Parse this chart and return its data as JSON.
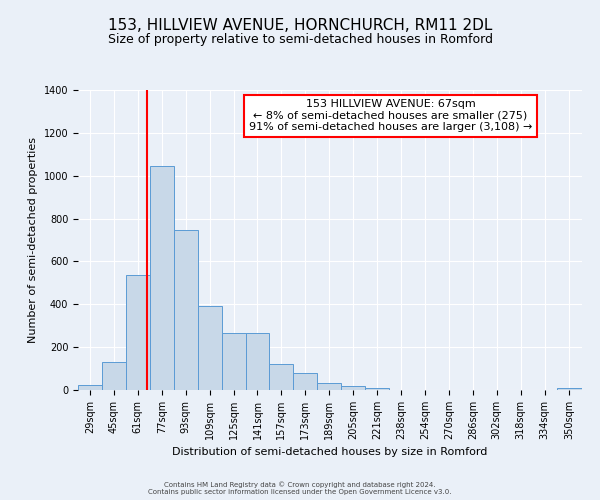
{
  "title": "153, HILLVIEW AVENUE, HORNCHURCH, RM11 2DL",
  "subtitle": "Size of property relative to semi-detached houses in Romford",
  "xlabel": "Distribution of semi-detached houses by size in Romford",
  "ylabel": "Number of semi-detached properties",
  "footer_line1": "Contains HM Land Registry data © Crown copyright and database right 2024.",
  "footer_line2": "Contains public sector information licensed under the Open Government Licence v3.0.",
  "annotation_title": "153 HILLVIEW AVENUE: 67sqm",
  "annotation_line1": "← 8% of semi-detached houses are smaller (275)",
  "annotation_line2": "91% of semi-detached houses are larger (3,108) →",
  "property_line": 67,
  "bar_color": "#c8d8e8",
  "bar_edge_color": "#5b9bd5",
  "vline_color": "red",
  "categories": [
    "29sqm",
    "45sqm",
    "61sqm",
    "77sqm",
    "93sqm",
    "109sqm",
    "125sqm",
    "141sqm",
    "157sqm",
    "173sqm",
    "189sqm",
    "205sqm",
    "221sqm",
    "238sqm",
    "254sqm",
    "270sqm",
    "286sqm",
    "302sqm",
    "318sqm",
    "334sqm",
    "350sqm"
  ],
  "bin_edges": [
    21,
    37,
    53,
    69,
    85,
    101,
    117,
    133,
    149,
    165,
    181,
    197,
    213,
    229,
    245,
    261,
    277,
    293,
    309,
    325,
    341,
    358
  ],
  "values": [
    25,
    133,
    537,
    1044,
    749,
    390,
    265,
    265,
    120,
    80,
    35,
    20,
    10,
    0,
    0,
    0,
    0,
    0,
    0,
    0,
    10
  ],
  "ylim": [
    0,
    1400
  ],
  "yticks": [
    0,
    200,
    400,
    600,
    800,
    1000,
    1200,
    1400
  ],
  "background_color": "#eaf0f8",
  "plot_bg_color": "#eaf0f8",
  "title_fontsize": 11,
  "subtitle_fontsize": 9,
  "label_fontsize": 8,
  "tick_fontsize": 7,
  "footer_fontsize": 5,
  "annotation_fontsize": 8,
  "annotation_box_color": "white",
  "annotation_box_edge": "red"
}
